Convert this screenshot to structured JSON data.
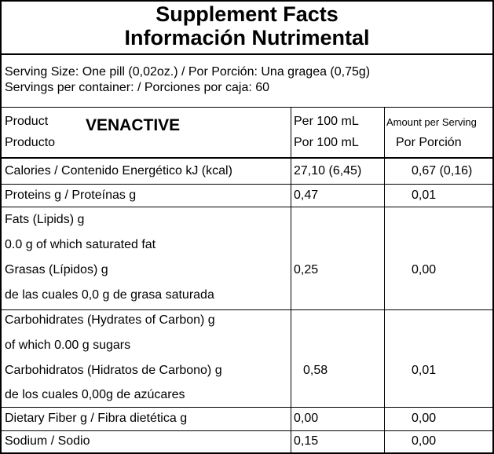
{
  "header": {
    "title_en": "Supplement Facts",
    "title_es": "Información Nutrimental"
  },
  "serving": {
    "size": "Serving Size: One pill (0,02oz.) / Por Porción: Una gragea (0,75g)",
    "per_container": "Servings per container: / Porciones por caja: 60"
  },
  "columns": {
    "product_en": "Product",
    "product_es": "Producto",
    "brand": "VENACTIVE",
    "per100_en": "Per 100 mL",
    "per100_es": "Por 100 mL",
    "serving_en": "Amount per Serving",
    "serving_es": "Por Porción"
  },
  "rows": [
    {
      "label": "Calories / Contenido Energético  kJ (kcal)",
      "per100": "27,10 (6,45)",
      "serving": "0,67 (0,16)"
    },
    {
      "label": "Proteins g / Proteínas g",
      "per100": "0,47",
      "serving": "0,01"
    },
    {
      "lines": [
        "Fats (Lipids) g",
        "0.0 g of which saturated fat",
        "Grasas (Lípidos) g",
        "de las cuales 0,0 g de grasa saturada"
      ],
      "per100": "0,25",
      "serving": "0,00"
    },
    {
      "lines": [
        "Carbohidrates (Hydrates of Carbon) g",
        "of which 0.00 g sugars",
        "Carbohidratos (Hidratos de Carbono) g",
        "de los cuales 0,00g de azúcares"
      ],
      "per100": "0,58",
      "serving": "0,01"
    },
    {
      "label": "Dietary Fiber g / Fibra dietética g",
      "per100": "0,00",
      "serving": "0,00"
    },
    {
      "label": "Sodium / Sodio",
      "per100": "0,15",
      "serving": "0,00"
    }
  ]
}
